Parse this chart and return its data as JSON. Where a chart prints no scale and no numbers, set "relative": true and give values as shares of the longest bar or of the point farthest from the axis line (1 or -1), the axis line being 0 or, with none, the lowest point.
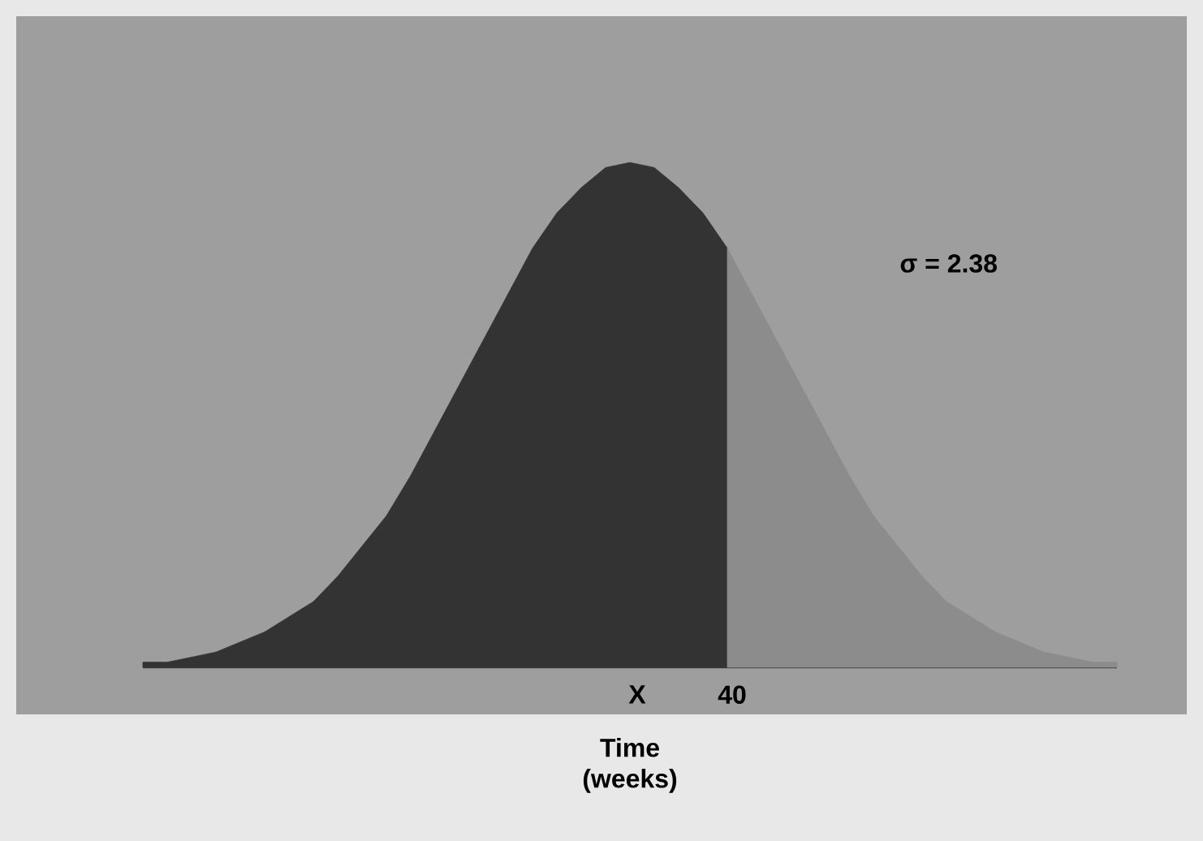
{
  "chart_data": {
    "type": "area",
    "relative": true,
    "xlabel": "Time (weeks)",
    "annotations": [
      "σ = 2.38",
      "X",
      "40"
    ],
    "categories": [
      null,
      null,
      null,
      null,
      null,
      null,
      null,
      null,
      null,
      null,
      null,
      null,
      null,
      null,
      null,
      null,
      null,
      null,
      null,
      null,
      null,
      null,
      null,
      null,
      null,
      null,
      null,
      null,
      null,
      null,
      null,
      null,
      null,
      null,
      null,
      null,
      null,
      null,
      null,
      null,
      null
    ],
    "series": [
      {
        "color": "#333333",
        "values": [
          0.01,
          0.01,
          0.02,
          0.03,
          0.05,
          0.07,
          0.1,
          0.13,
          0.18,
          0.24,
          0.3,
          0.38,
          0.47,
          0.56,
          0.65,
          0.74,
          0.83,
          0.9,
          0.95,
          0.99,
          1.0,
          0.99,
          0.95,
          0.9,
          0.83,
          null,
          null,
          null,
          null,
          null,
          null,
          null,
          null,
          null,
          null,
          null,
          null,
          null,
          null,
          null,
          null
        ]
      },
      {
        "color": "#8c8c8c",
        "values": [
          null,
          null,
          null,
          null,
          null,
          null,
          null,
          null,
          null,
          null,
          null,
          null,
          null,
          null,
          null,
          null,
          null,
          null,
          null,
          null,
          null,
          null,
          null,
          null,
          0.83,
          0.74,
          0.65,
          0.56,
          0.47,
          0.38,
          0.3,
          0.24,
          0.18,
          0.13,
          0.1,
          0.07,
          0.05,
          0.03,
          0.02,
          0.01,
          0.01
        ]
      }
    ]
  }
}
